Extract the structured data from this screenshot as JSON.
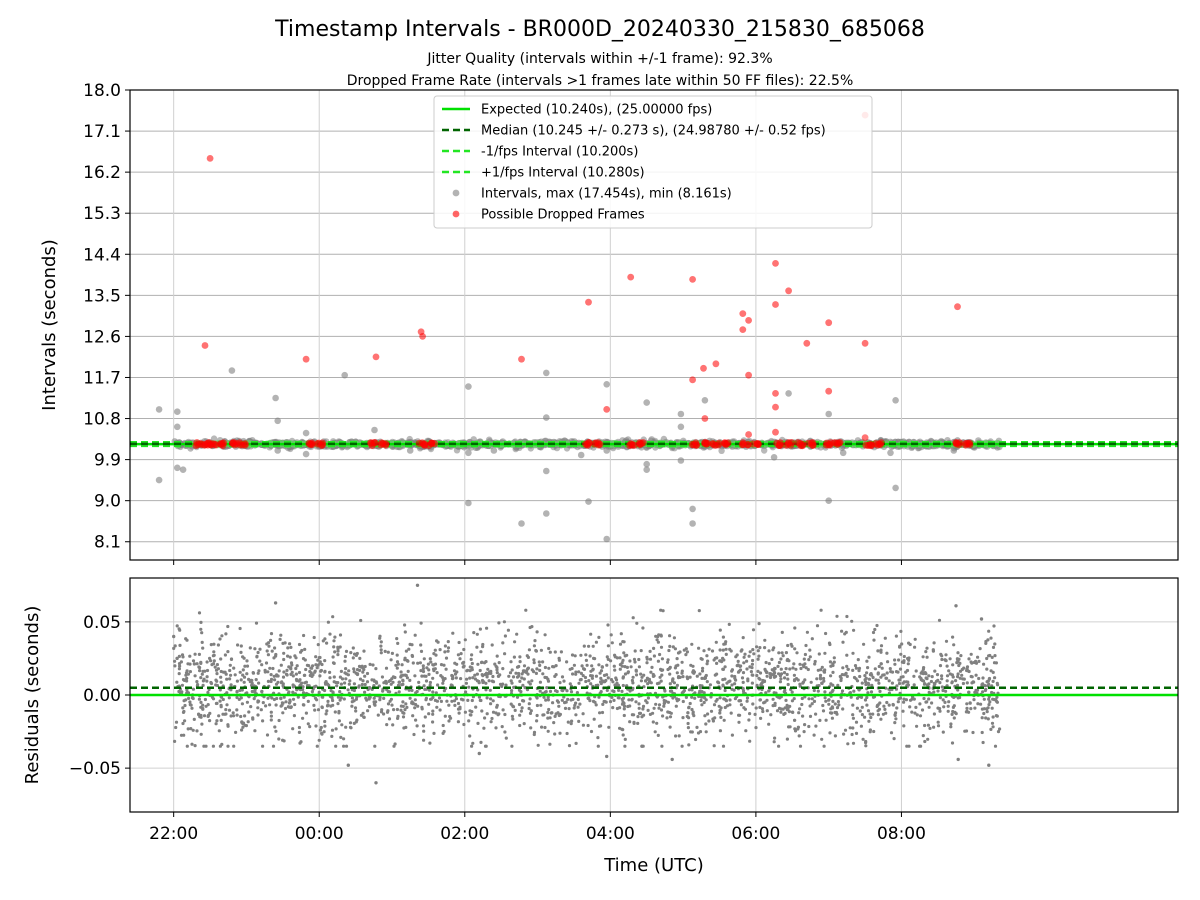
{
  "figure": {
    "title": "Timestamp Intervals - BR000D_20240330_215830_685068",
    "subtitle_1": "Jitter Quality (intervals within +/-1 frame): 92.3%",
    "subtitle_2": "Dropped Frame Rate (intervals >1 frames late within 50 FF files): 22.5%"
  },
  "colors": {
    "expected": "#00e000",
    "median": "#006400",
    "fps_band": "#22e622",
    "intervals": "#808080",
    "dropped": "#ff0000",
    "grid": "#b0b0b0"
  },
  "chart_data": [
    {
      "type": "scatter",
      "name": "intervals",
      "xlabel": "",
      "ylabel": "Intervals (seconds)",
      "ylim": [
        7.7,
        18.0
      ],
      "yticks": [
        "8.1",
        "9.0",
        "9.9",
        "10.8",
        "11.7",
        "12.6",
        "13.5",
        "14.4",
        "15.3",
        "16.2",
        "17.1",
        "18.0"
      ],
      "ytick_values": [
        8.1,
        9.0,
        9.9,
        10.8,
        11.7,
        12.6,
        13.5,
        14.4,
        15.3,
        16.2,
        17.1,
        18.0
      ],
      "xlim_hours": [
        -2.6,
        11.8
      ],
      "x_unit": "hours from 00:00 UTC (2024-03-30 22:00 = -2)",
      "grid": true,
      "legend_position": "top-center",
      "legend": [
        "Expected (10.240s), (25.00000 fps)",
        "Median (10.245 +/- 0.273 s), (24.98780 +/- 0.52 fps)",
        "-1/fps Interval (10.200s)",
        "+1/fps Interval (10.280s)",
        "Intervals, max (17.454s), min (8.161s)",
        "Possible Dropped Frames"
      ],
      "lines": {
        "expected": 10.24,
        "median": 10.245,
        "minus_fps": 10.2,
        "plus_fps": 10.28
      },
      "series": [
        {
          "name": "Intervals, max (17.454s), min (8.161s)",
          "points": [
            [
              -2.2,
              11.0
            ],
            [
              -2.2,
              9.45
            ],
            [
              -1.95,
              10.95
            ],
            [
              -1.95,
              10.62
            ],
            [
              -1.95,
              9.72
            ],
            [
              -1.87,
              9.68
            ],
            [
              -1.2,
              11.85
            ],
            [
              -0.6,
              11.25
            ],
            [
              -0.57,
              10.75
            ],
            [
              -0.57,
              10.1
            ],
            [
              -0.18,
              10.48
            ],
            [
              -0.18,
              10.02
            ],
            [
              0.35,
              11.75
            ],
            [
              0.76,
              10.55
            ],
            [
              1.25,
              10.1
            ],
            [
              2.05,
              11.5
            ],
            [
              2.05,
              10.05
            ],
            [
              2.05,
              8.95
            ],
            [
              2.4,
              10.1
            ],
            [
              2.78,
              8.5
            ],
            [
              3.12,
              11.8
            ],
            [
              3.12,
              10.82
            ],
            [
              3.12,
              9.65
            ],
            [
              3.12,
              8.72
            ],
            [
              3.6,
              10.0
            ],
            [
              3.7,
              8.98
            ],
            [
              3.95,
              11.55
            ],
            [
              3.95,
              10.1
            ],
            [
              3.95,
              8.16
            ],
            [
              4.5,
              11.15
            ],
            [
              4.5,
              9.8
            ],
            [
              4.5,
              9.68
            ],
            [
              4.97,
              10.9
            ],
            [
              4.97,
              10.62
            ],
            [
              4.97,
              9.88
            ],
            [
              5.13,
              8.82
            ],
            [
              5.13,
              8.5
            ],
            [
              5.3,
              11.2
            ],
            [
              6.45,
              11.35
            ],
            [
              6.25,
              9.95
            ],
            [
              7.0,
              10.9
            ],
            [
              7.0,
              9.0
            ],
            [
              7.2,
              10.05
            ],
            [
              7.92,
              11.2
            ],
            [
              7.92,
              9.28
            ],
            [
              7.85,
              10.05
            ],
            [
              8.72,
              10.1
            ],
            [
              8.77,
              10.32
            ]
          ]
        },
        {
          "name": "Possible Dropped Frames",
          "points": [
            [
              -1.5,
              16.5
            ],
            [
              -1.57,
              12.4
            ],
            [
              -0.18,
              12.1
            ],
            [
              0.78,
              12.15
            ],
            [
              1.4,
              12.7
            ],
            [
              1.42,
              12.6
            ],
            [
              2.78,
              12.1
            ],
            [
              3.7,
              13.35
            ],
            [
              3.95,
              11.0
            ],
            [
              4.28,
              13.9
            ],
            [
              5.13,
              13.85
            ],
            [
              5.13,
              11.65
            ],
            [
              5.28,
              11.9
            ],
            [
              5.3,
              10.8
            ],
            [
              5.45,
              12.0
            ],
            [
              5.82,
              13.1
            ],
            [
              5.82,
              12.75
            ],
            [
              5.9,
              12.95
            ],
            [
              5.9,
              11.75
            ],
            [
              5.9,
              10.45
            ],
            [
              6.27,
              14.2
            ],
            [
              6.27,
              13.3
            ],
            [
              6.27,
              11.35
            ],
            [
              6.27,
              11.05
            ],
            [
              6.27,
              10.5
            ],
            [
              6.45,
              13.6
            ],
            [
              6.7,
              12.45
            ],
            [
              7.0,
              12.9
            ],
            [
              7.0,
              11.4
            ],
            [
              7.5,
              17.45
            ],
            [
              7.5,
              12.45
            ],
            [
              7.5,
              10.38
            ],
            [
              8.77,
              13.25
            ]
          ]
        },
        {
          "name": "Possible Dropped Frames (cluster)",
          "points": [
            [
              -1.65,
              10.24
            ],
            [
              -1.55,
              10.24
            ],
            [
              -1.45,
              10.24
            ],
            [
              -1.35,
              10.24
            ],
            [
              -1.15,
              10.24
            ],
            [
              -1.05,
              10.24
            ],
            [
              -0.1,
              10.24
            ],
            [
              0.0,
              10.24
            ],
            [
              0.75,
              10.24
            ],
            [
              0.88,
              10.24
            ],
            [
              1.42,
              10.24
            ],
            [
              1.55,
              10.24
            ],
            [
              3.7,
              10.24
            ],
            [
              3.82,
              10.24
            ],
            [
              4.3,
              10.24
            ],
            [
              4.42,
              10.24
            ],
            [
              5.15,
              10.24
            ],
            [
              5.3,
              10.24
            ],
            [
              5.45,
              10.24
            ],
            [
              5.6,
              10.24
            ],
            [
              5.85,
              10.24
            ],
            [
              6.0,
              10.24
            ],
            [
              6.3,
              10.24
            ],
            [
              6.45,
              10.24
            ],
            [
              6.6,
              10.24
            ],
            [
              6.75,
              10.24
            ],
            [
              7.0,
              10.24
            ],
            [
              7.12,
              10.24
            ],
            [
              7.55,
              10.24
            ],
            [
              7.68,
              10.24
            ],
            [
              8.78,
              10.24
            ],
            [
              8.9,
              10.24
            ]
          ]
        }
      ]
    },
    {
      "type": "scatter",
      "name": "residuals",
      "xlabel": "Time (UTC)",
      "ylabel": "Residuals (seconds)",
      "ylim": [
        -0.08,
        0.08
      ],
      "yticks": [
        "−0.05",
        "0.00",
        "0.05"
      ],
      "ytick_values": [
        -0.05,
        0.0,
        0.05
      ],
      "xticks": [
        "22:00",
        "00:00",
        "02:00",
        "04:00",
        "06:00",
        "08:00"
      ],
      "xtick_hours": [
        -2,
        0,
        2,
        4,
        6,
        8
      ],
      "xlim_hours": [
        -2.6,
        11.8
      ],
      "x_range_hours": [
        -2.0,
        9.35
      ],
      "grid": true,
      "lines": {
        "expected": 0.0,
        "median": 0.005
      },
      "series": [
        {
          "name": "Residuals",
          "n_points": 2700,
          "mean": 0.006,
          "std": 0.018,
          "outliers": [
            [
              -2.0,
              0.04
            ],
            [
              -0.6,
              0.063
            ],
            [
              0.4,
              -0.048
            ],
            [
              0.78,
              -0.06
            ],
            [
              1.35,
              0.075
            ],
            [
              2.2,
              -0.04
            ],
            [
              3.95,
              -0.042
            ],
            [
              4.85,
              -0.044
            ],
            [
              8.75,
              0.061
            ],
            [
              8.78,
              -0.044
            ],
            [
              9.2,
              -0.048
            ],
            [
              9.1,
              0.052
            ]
          ]
        }
      ]
    }
  ]
}
